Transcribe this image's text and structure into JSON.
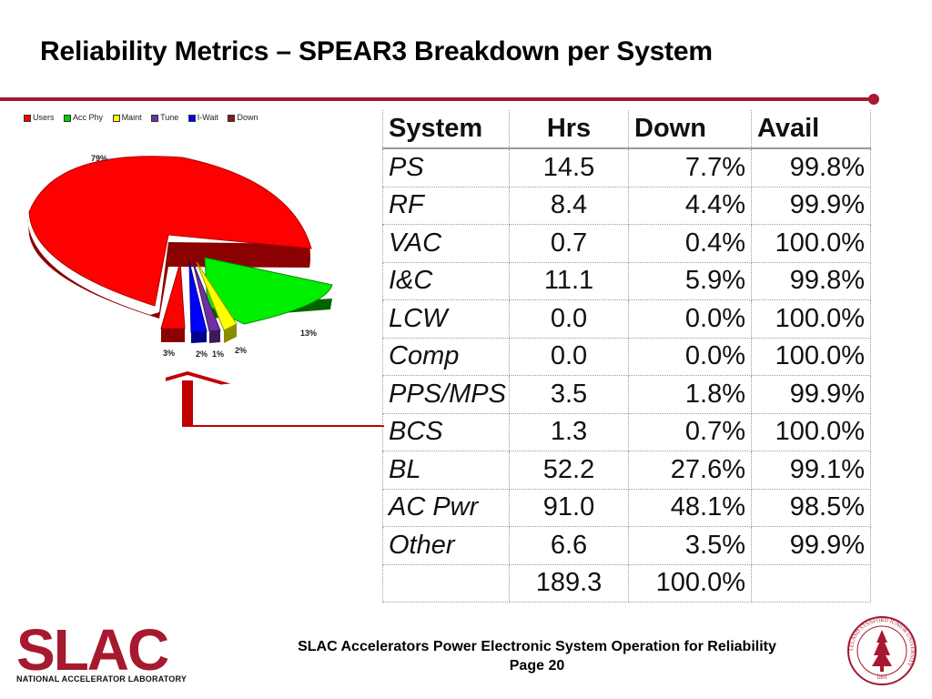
{
  "title": "Reliability Metrics – SPEAR3 Breakdown per System",
  "pie": {
    "legend": [
      {
        "label": "Users",
        "color": "#ff0000"
      },
      {
        "label": "Acc Phy",
        "color": "#00cc00"
      },
      {
        "label": "Maint",
        "color": "#ffff00"
      },
      {
        "label": "Tune",
        "color": "#7030a0"
      },
      {
        "label": "I-Wait",
        "color": "#0000ff"
      },
      {
        "label": "Down",
        "color": "#8b1a1a"
      }
    ],
    "labels": {
      "users": "79%",
      "accphy": "13%",
      "down": "3%",
      "iwait": "2%",
      "tune": "1%",
      "maint": "2%"
    }
  },
  "table": {
    "headers": [
      "System",
      "Hrs",
      "Down",
      "Avail"
    ],
    "rows": [
      [
        "PS",
        "14.5",
        "7.7%",
        "99.8%"
      ],
      [
        "RF",
        "8.4",
        "4.4%",
        "99.9%"
      ],
      [
        "VAC",
        "0.7",
        "0.4%",
        "100.0%"
      ],
      [
        "I&C",
        "11.1",
        "5.9%",
        "99.8%"
      ],
      [
        "LCW",
        "0.0",
        "0.0%",
        "100.0%"
      ],
      [
        "Comp",
        "0.0",
        "0.0%",
        "100.0%"
      ],
      [
        "PPS/MPS",
        "3.5",
        "1.8%",
        "99.9%"
      ],
      [
        "BCS",
        "1.3",
        "0.7%",
        "100.0%"
      ],
      [
        "BL",
        "52.2",
        "27.6%",
        "99.1%"
      ],
      [
        "AC Pwr",
        "91.0",
        "48.1%",
        "98.5%"
      ],
      [
        "Other",
        "6.6",
        "3.5%",
        "99.9%"
      ],
      [
        "",
        "189.3",
        "100.0%",
        ""
      ]
    ]
  },
  "footer": {
    "line1": "SLAC Accelerators Power Electronic System Operation for Reliability",
    "line2": "Page 20"
  },
  "logo": {
    "name": "SLAC",
    "subtitle": "NATIONAL ACCELERATOR LABORATORY"
  },
  "seal": {
    "text": "LELAND STANFORD JUNIOR UNIVERSITY",
    "year": "1891"
  },
  "colors": {
    "accent": "#a6192e"
  }
}
